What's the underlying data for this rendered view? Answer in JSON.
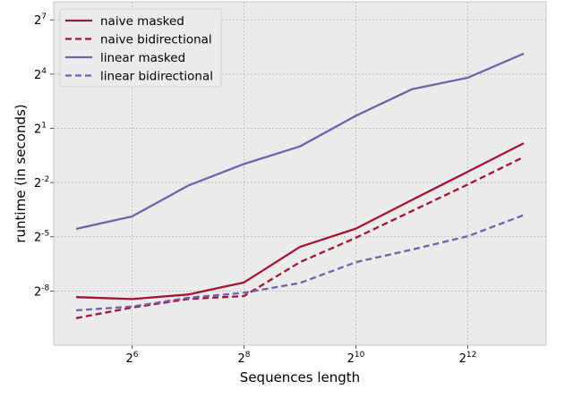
{
  "chart_data": {
    "type": "line",
    "xlabel": "Sequences length",
    "ylabel": "runtime (in seconds)",
    "x_scale": "log2",
    "y_scale": "log2",
    "x_exponent_range": [
      4.6,
      13.4
    ],
    "y_exponent_range": [
      -11,
      8
    ],
    "x_ticks": [
      {
        "base": "2",
        "exp": "6",
        "e": 6
      },
      {
        "base": "2",
        "exp": "8",
        "e": 8
      },
      {
        "base": "2",
        "exp": "10",
        "e": 10
      },
      {
        "base": "2",
        "exp": "12",
        "e": 12
      }
    ],
    "y_ticks": [
      {
        "base": "2",
        "exp": "7",
        "e": 7
      },
      {
        "base": "2",
        "exp": "4",
        "e": 4
      },
      {
        "base": "2",
        "exp": "1",
        "e": 1
      },
      {
        "base": "2",
        "exp": "-2",
        "e": -2
      },
      {
        "base": "2",
        "exp": "-5",
        "e": -5
      },
      {
        "base": "2",
        "exp": "-8",
        "e": -8
      }
    ],
    "grid": true,
    "legend_position": "top-left",
    "x": [
      32,
      64,
      128,
      256,
      512,
      1024,
      2048,
      4096,
      8192
    ],
    "series": [
      {
        "name": "naive masked",
        "color": "#a2142f",
        "dash": "solid",
        "values": [
          0.00309,
          0.00287,
          0.00341,
          0.00542,
          0.0212,
          0.0427,
          0.128,
          0.379,
          1.129
        ]
      },
      {
        "name": "naive bidirectional",
        "color": "#a2142f",
        "dash": "dashed",
        "values": [
          0.00138,
          0.00207,
          0.00287,
          0.00322,
          0.0118,
          0.0301,
          0.0838,
          0.232,
          0.665
        ]
      },
      {
        "name": "linear masked",
        "color": "#7261ab",
        "dash": "solid",
        "values": [
          0.0423,
          0.0682,
          0.222,
          0.509,
          1.0,
          3.236,
          8.951,
          13.93,
          35.14
        ]
      },
      {
        "name": "linear bidirectional",
        "color": "#7261ab",
        "dash": "dashed",
        "values": [
          0.00186,
          0.00215,
          0.00301,
          0.00365,
          0.00531,
          0.0118,
          0.0191,
          0.0319,
          0.0719
        ]
      }
    ]
  }
}
